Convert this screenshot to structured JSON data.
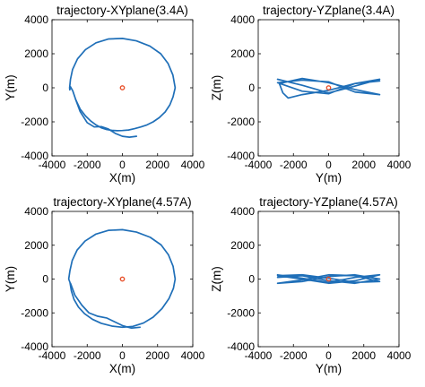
{
  "chart_data": [
    {
      "type": "line",
      "title": "trajectory-XYplane(3.4A)",
      "xlabel": "X(m)",
      "ylabel": "Y(m)",
      "xlim": [
        -4000,
        4000
      ],
      "ylim": [
        -4000,
        4000
      ],
      "xticks": [
        -4000,
        -2000,
        0,
        2000,
        4000
      ],
      "yticks": [
        -4000,
        -2000,
        0,
        2000,
        4000
      ],
      "xtick_labels": [
        "-4000",
        "-2000",
        "0",
        "2000",
        "4000"
      ],
      "ytick_labels": [
        "-4000",
        "-2000",
        "0",
        "2000",
        "4000"
      ],
      "grid": false,
      "line_color": "#1f6fb8",
      "series": [
        {
          "x": [
            3000,
            2870,
            2600,
            2180,
            1560,
            790,
            0,
            -780,
            -1500,
            -2100,
            -2550,
            -2830,
            -2950,
            -3000,
            -2990,
            -2950,
            -2820,
            -2650,
            -2400,
            -2100,
            -1800,
            -1500,
            -1200,
            -900,
            -600,
            -300,
            0,
            350,
            700,
            1050,
            1400,
            1750,
            2100,
            2430,
            2700,
            2880,
            3000
          ],
          "y": [
            0,
            750,
            1420,
            2000,
            2450,
            2760,
            2900,
            2870,
            2640,
            2240,
            1700,
            1080,
            500,
            0,
            -120,
            60,
            -180,
            -700,
            -1250,
            -1650,
            -1950,
            -2180,
            -2350,
            -2450,
            -2500,
            -2520,
            -2510,
            -2480,
            -2400,
            -2300,
            -2180,
            -2000,
            -1750,
            -1420,
            -1000,
            -530,
            0
          ]
        },
        {
          "x": [
            -2650,
            -2400,
            -2000,
            -1600,
            -1200,
            -800,
            -400,
            0,
            400,
            800
          ],
          "y": [
            -700,
            -1400,
            -2050,
            -2300,
            -2280,
            -2420,
            -2680,
            -2850,
            -2900,
            -2850
          ]
        }
      ],
      "marker": {
        "x": [
          0
        ],
        "y": [
          0
        ],
        "color": "#e8512b"
      }
    },
    {
      "type": "line",
      "title": "trajectory-YZplane(3.4A)",
      "xlabel": "Y(m)",
      "ylabel": "Z(m)",
      "xlim": [
        -4000,
        4000
      ],
      "ylim": [
        -4000,
        4000
      ],
      "xticks": [
        -4000,
        -2000,
        0,
        2000,
        4000
      ],
      "yticks": [
        -4000,
        -2000,
        0,
        2000,
        4000
      ],
      "xtick_labels": [
        "-4000",
        "-2000",
        "0",
        "2000",
        "4000"
      ],
      "ytick_labels": [
        "-4000",
        "-2000",
        "0",
        "2000",
        "4000"
      ],
      "grid": false,
      "line_color": "#1f6fb8",
      "series": [
        {
          "x": [
            -2900,
            -1500,
            0,
            1500,
            2900,
            1500,
            0,
            -1500,
            -2900,
            -1500,
            0,
            1500,
            2900,
            1500,
            0,
            -1500,
            -2800,
            -2600,
            -2300,
            -1500,
            0,
            1500,
            2900
          ],
          "y": [
            500,
            150,
            -300,
            100,
            500,
            250,
            -350,
            -200,
            300,
            450,
            350,
            -250,
            -400,
            -100,
            300,
            550,
            250,
            -300,
            -600,
            -400,
            -150,
            250,
            400
          ]
        }
      ],
      "marker": {
        "x": [
          0
        ],
        "y": [
          0
        ],
        "color": "#e8512b"
      }
    },
    {
      "type": "line",
      "title": "trajectory-XYplane(4.57A)",
      "xlabel": "X(m)",
      "ylabel": "Y(m)",
      "xlim": [
        -4000,
        4000
      ],
      "ylim": [
        -4000,
        4000
      ],
      "xticks": [
        -4000,
        -2000,
        0,
        2000,
        4000
      ],
      "yticks": [
        -4000,
        -2000,
        0,
        2000,
        4000
      ],
      "xtick_labels": [
        "-4000",
        "-2000",
        "0",
        "2000",
        "4000"
      ],
      "ytick_labels": [
        "-4000",
        "-2000",
        "0",
        "2000",
        "4000"
      ],
      "grid": false,
      "line_color": "#1f6fb8",
      "series": [
        {
          "x": [
            3000,
            2880,
            2620,
            2200,
            1580,
            800,
            0,
            -800,
            -1520,
            -2120,
            -2570,
            -2850,
            -2980,
            -3050,
            -2980,
            -2900,
            -2750,
            -2500,
            -2150,
            -1700,
            -1200,
            -600,
            0,
            600,
            1200,
            1750,
            2250,
            2650,
            2900,
            3000
          ],
          "y": [
            0,
            760,
            1430,
            2020,
            2470,
            2780,
            2920,
            2880,
            2650,
            2250,
            1720,
            1100,
            500,
            0,
            -200,
            -700,
            -1200,
            -1650,
            -2050,
            -2380,
            -2620,
            -2780,
            -2850,
            -2800,
            -2600,
            -2250,
            -1750,
            -1150,
            -550,
            0
          ]
        },
        {
          "x": [
            -2950,
            -2700,
            -2300,
            -1900,
            -1400,
            -900,
            -400,
            0,
            500,
            1000
          ],
          "y": [
            -250,
            -950,
            -1550,
            -2000,
            -2200,
            -2300,
            -2550,
            -2750,
            -2900,
            -2850
          ]
        }
      ],
      "marker": {
        "x": [
          0
        ],
        "y": [
          0
        ],
        "color": "#e8512b"
      }
    },
    {
      "type": "line",
      "title": "trajectory-YZplane(4.57A)",
      "xlabel": "Y(m)",
      "ylabel": "Z(m)",
      "xlim": [
        -4000,
        4000
      ],
      "ylim": [
        -4000,
        4000
      ],
      "xticks": [
        -4000,
        -2000,
        0,
        2000,
        4000
      ],
      "yticks": [
        -4000,
        -2000,
        0,
        2000,
        4000
      ],
      "xtick_labels": [
        "-4000",
        "-2000",
        "0",
        "2000",
        "4000"
      ],
      "ytick_labels": [
        "-4000",
        "-2000",
        "0",
        "2000",
        "4000"
      ],
      "grid": false,
      "line_color": "#1f6fb8",
      "series": [
        {
          "x": [
            -2900,
            -1500,
            0,
            1500,
            2900,
            1500,
            0,
            -1500,
            -2900,
            -1500,
            0,
            1500,
            2900,
            1500,
            0,
            -1500,
            -2900,
            -1500,
            0,
            1500,
            2900,
            1500,
            0,
            -1500,
            -2900
          ],
          "y": [
            250,
            50,
            -200,
            100,
            250,
            -100,
            -250,
            0,
            200,
            250,
            50,
            -200,
            -150,
            200,
            250,
            -50,
            -250,
            -150,
            150,
            250,
            0,
            -250,
            -100,
            200,
            100
          ]
        }
      ],
      "marker": {
        "x": [
          0
        ],
        "y": [
          0
        ],
        "color": "#e8512b"
      }
    }
  ]
}
